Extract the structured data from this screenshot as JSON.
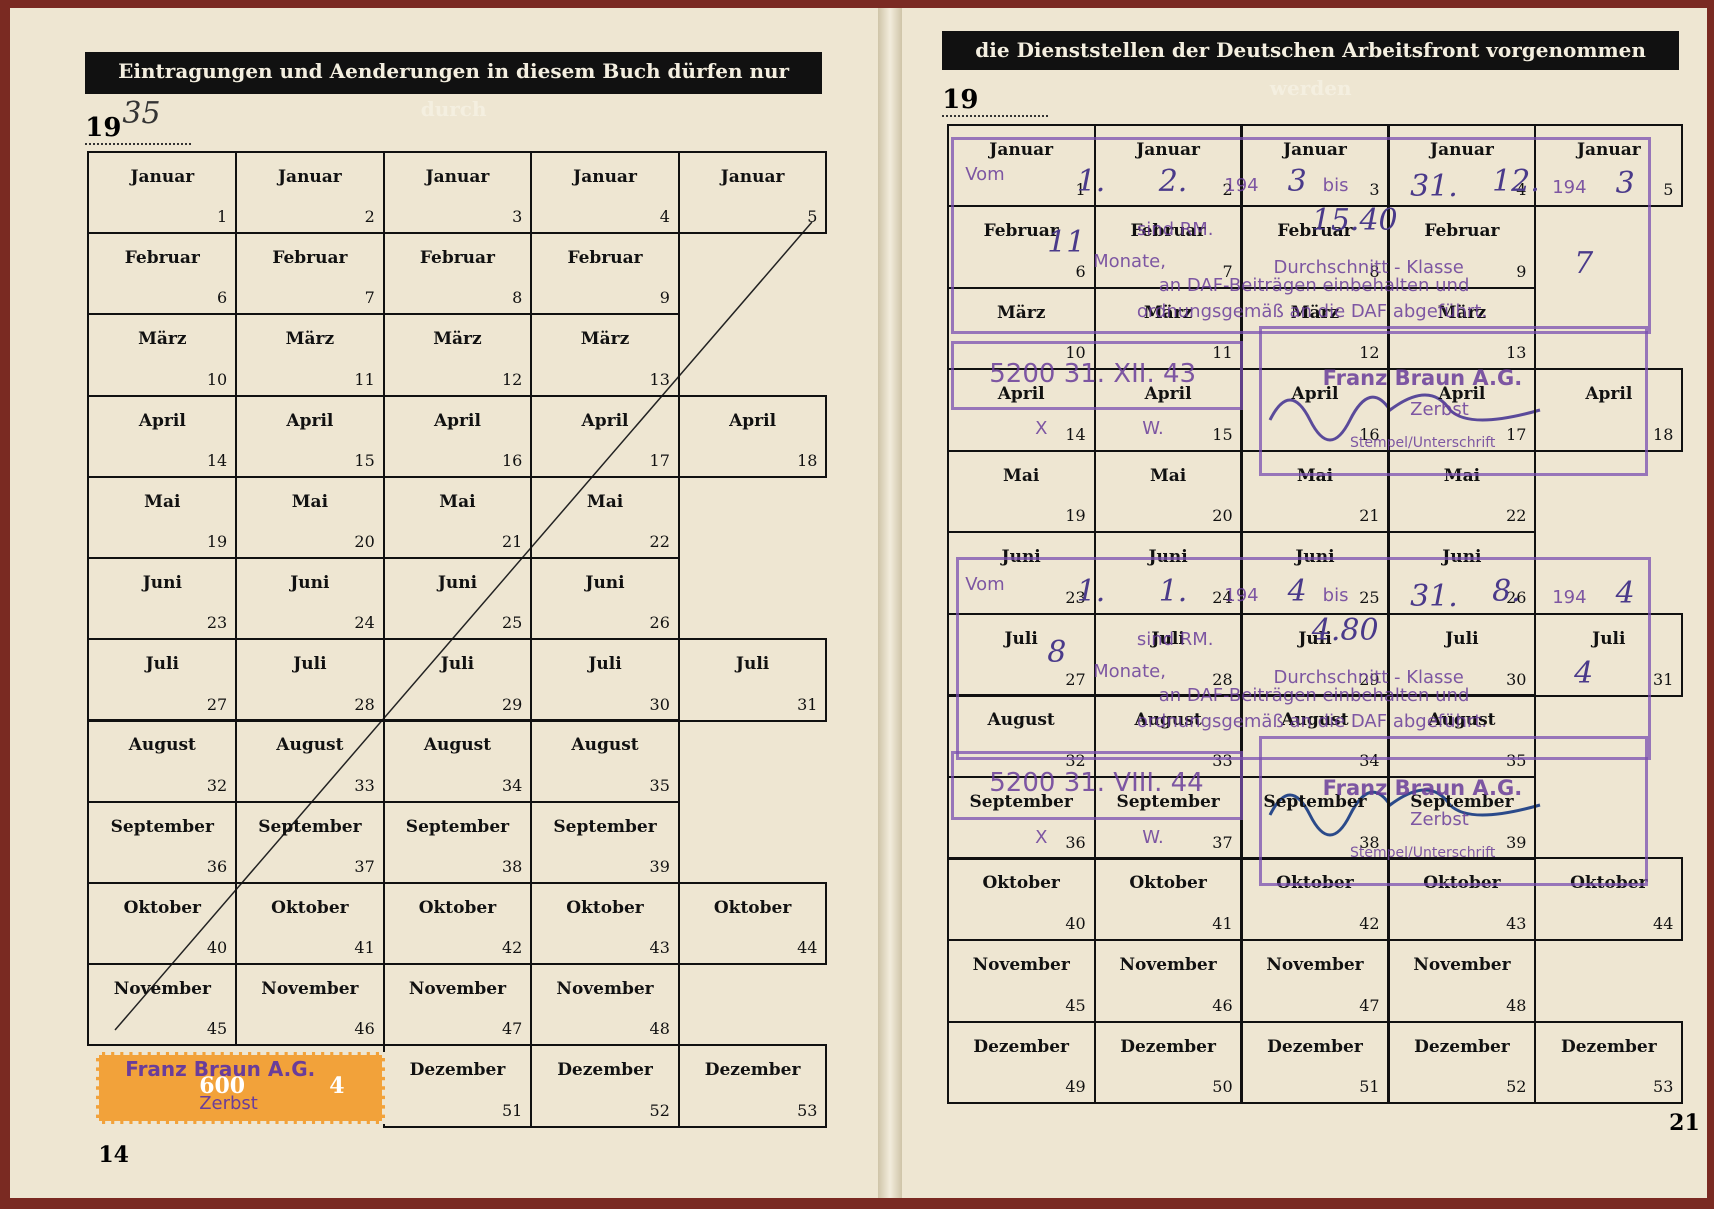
{
  "pages": [
    {
      "header": "Eintragungen und Aenderungen in diesem Buch dürfen nur durch",
      "year_prefix": "19",
      "year_hand": "35",
      "page_number": "14",
      "months": [
        {
          "name": "Januar",
          "weeks": [
            1,
            2,
            3,
            4,
            5
          ]
        },
        {
          "name": "Februar",
          "weeks": [
            6,
            7,
            8,
            9
          ]
        },
        {
          "name": "März",
          "weeks": [
            10,
            11,
            12,
            13
          ]
        },
        {
          "name": "April",
          "weeks": [
            14,
            15,
            16,
            17,
            18
          ]
        },
        {
          "name": "Mai",
          "weeks": [
            19,
            20,
            21,
            22
          ]
        },
        {
          "name": "Juni",
          "weeks": [
            23,
            24,
            25,
            26
          ]
        },
        {
          "name": "Juli",
          "weeks": [
            27,
            28,
            29,
            30,
            31
          ]
        },
        {
          "name": "August",
          "weeks": [
            32,
            33,
            34,
            35
          ]
        },
        {
          "name": "September",
          "weeks": [
            36,
            37,
            38,
            39
          ]
        },
        {
          "name": "Oktober",
          "weeks": [
            40,
            41,
            42,
            43,
            44
          ]
        },
        {
          "name": "November",
          "weeks": [
            45,
            46,
            47,
            48
          ]
        },
        {
          "name": "Dezember",
          "weeks": [
            51,
            52,
            53
          ]
        }
      ]
    },
    {
      "header": "die Dienststellen der Deutschen Arbeitsfront vorgenommen werden",
      "year_prefix": "19",
      "page_number": "21",
      "months": [
        {
          "name": "Januar",
          "weeks": [
            1,
            2,
            3,
            4,
            5
          ]
        },
        {
          "name": "Februar",
          "weeks": [
            6,
            7,
            8,
            9
          ]
        },
        {
          "name": "März",
          "weeks": [
            10,
            11,
            12,
            13
          ]
        },
        {
          "name": "April",
          "weeks": [
            14,
            15,
            16,
            17,
            18
          ]
        },
        {
          "name": "Mai",
          "weeks": [
            19,
            20,
            21,
            22
          ]
        },
        {
          "name": "Juni",
          "weeks": [
            23,
            24,
            25,
            26
          ]
        },
        {
          "name": "Juli",
          "weeks": [
            27,
            28,
            29,
            30,
            31
          ]
        },
        {
          "name": "August",
          "weeks": [
            32,
            33,
            34,
            35
          ]
        },
        {
          "name": "September",
          "weeks": [
            36,
            37,
            38,
            39
          ]
        },
        {
          "name": "Oktober",
          "weeks": [
            40,
            41,
            42,
            43,
            44
          ]
        },
        {
          "name": "November",
          "weeks": [
            45,
            46,
            47,
            48
          ]
        },
        {
          "name": "Dezember",
          "weeks": [
            49,
            50,
            51,
            52,
            53
          ]
        }
      ]
    }
  ],
  "stamps": [
    {
      "items": [
        {
          "text": "Vom",
          "kind": "print"
        },
        {
          "text": "1.",
          "kind": "hand"
        },
        {
          "text": "2.",
          "kind": "hand"
        },
        {
          "text": "194",
          "kind": "print"
        },
        {
          "text": "3",
          "kind": "hand"
        },
        {
          "text": "bis",
          "kind": "print"
        },
        {
          "text": "31.",
          "kind": "hand"
        },
        {
          "text": "12.",
          "kind": "hand"
        },
        {
          "text": "194",
          "kind": "print"
        },
        {
          "text": "3",
          "kind": "hand"
        },
        {
          "text": "sind RM.",
          "kind": "print"
        },
        {
          "text": "15.40",
          "kind": "hand"
        },
        {
          "text": "11",
          "kind": "hand"
        },
        {
          "text": "Monate,",
          "kind": "print"
        },
        {
          "text": "Durchschnitt - Klasse",
          "kind": "print"
        },
        {
          "text": "7",
          "kind": "hand"
        },
        {
          "text": "an DAF-Beiträgen einbehalten und",
          "kind": "print"
        },
        {
          "text": "ordnungsgemäß an die DAF abgeführt.",
          "kind": "print"
        },
        {
          "text": "5200 31. XII. 43",
          "kind": "big"
        },
        {
          "text": "Franz Braun A.G.",
          "kind": "bold"
        },
        {
          "text": "Zerbst",
          "kind": "print"
        },
        {
          "text": "Stempel/Unterschrift",
          "kind": "small"
        },
        {
          "text": "X",
          "kind": "print"
        },
        {
          "text": "W.",
          "kind": "print"
        }
      ]
    },
    {
      "items": [
        {
          "text": "Vom",
          "kind": "print"
        },
        {
          "text": "1.",
          "kind": "hand"
        },
        {
          "text": "1.",
          "kind": "hand"
        },
        {
          "text": "194",
          "kind": "print"
        },
        {
          "text": "4",
          "kind": "hand"
        },
        {
          "text": "bis",
          "kind": "print"
        },
        {
          "text": "31.",
          "kind": "hand"
        },
        {
          "text": "8.",
          "kind": "hand"
        },
        {
          "text": "194",
          "kind": "print"
        },
        {
          "text": "4",
          "kind": "hand"
        },
        {
          "text": "sind RM.",
          "kind": "print"
        },
        {
          "text": "4.80",
          "kind": "hand"
        },
        {
          "text": "8",
          "kind": "hand"
        },
        {
          "text": "Monate,",
          "kind": "print"
        },
        {
          "text": "Durchschnitt - Klasse",
          "kind": "print"
        },
        {
          "text": "4",
          "kind": "hand"
        },
        {
          "text": "an DAF-Beiträgen einbehalten und",
          "kind": "print"
        },
        {
          "text": "ordnungsgemäß an die DAF abgeführt.",
          "kind": "print"
        },
        {
          "text": "5200 31. VIII. 44",
          "kind": "big"
        },
        {
          "text": "Franz Braun A.G.",
          "kind": "bold"
        },
        {
          "text": "Zerbst",
          "kind": "print"
        },
        {
          "text": "Stempel/Unterschrift",
          "kind": "small"
        },
        {
          "text": "X",
          "kind": "print"
        },
        {
          "text": "W.",
          "kind": "print"
        }
      ]
    }
  ],
  "revenue_stamp": {
    "company": "Franz Braun A.G.",
    "city": "Zerbst",
    "amount": "600",
    "class": "4"
  }
}
